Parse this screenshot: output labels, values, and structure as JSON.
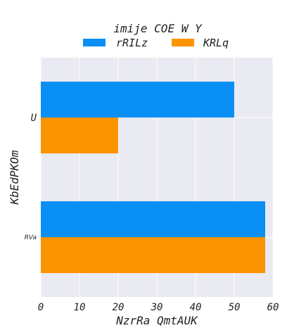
{
  "chart_data": {
    "type": "bar",
    "orientation": "horizontal",
    "legend_title": "imije COE  W Y",
    "legend_placement": "top-center",
    "xlabel": "NzrRa QmtAUK",
    "ylabel": "KbEdPKOm",
    "xlim": [
      0,
      60
    ],
    "xticks": [
      0,
      10,
      20,
      30,
      40,
      50,
      60
    ],
    "grid": true,
    "categories": [
      "U",
      "RVa"
    ],
    "series": [
      {
        "name": "rRILz",
        "color": "#0a8ff5",
        "values": [
          50,
          58
        ]
      },
      {
        "name": "KRLq",
        "color": "#fb9400",
        "values": [
          20,
          58
        ]
      }
    ],
    "background_color": "#eaeaf2"
  }
}
